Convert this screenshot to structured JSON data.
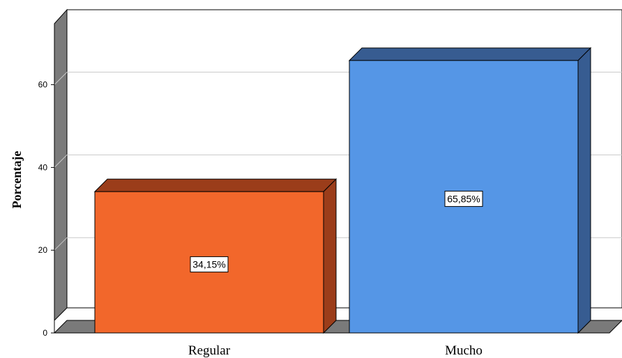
{
  "chart_data": {
    "type": "bar",
    "categories": [
      "Regular",
      "Mucho"
    ],
    "values": [
      34.15,
      65.85
    ],
    "data_labels": [
      "34,15%",
      "65,85%"
    ],
    "colors": [
      "#f2672b",
      "#5596e6"
    ],
    "side_colors": [
      "#9b3d1a",
      "#375c91"
    ],
    "ylabel": "Porcentaje",
    "yticks": [
      "0",
      "20",
      "40",
      "60"
    ],
    "ylim": [
      0,
      70
    ],
    "grid": true,
    "legend": "none",
    "style": "3d"
  }
}
